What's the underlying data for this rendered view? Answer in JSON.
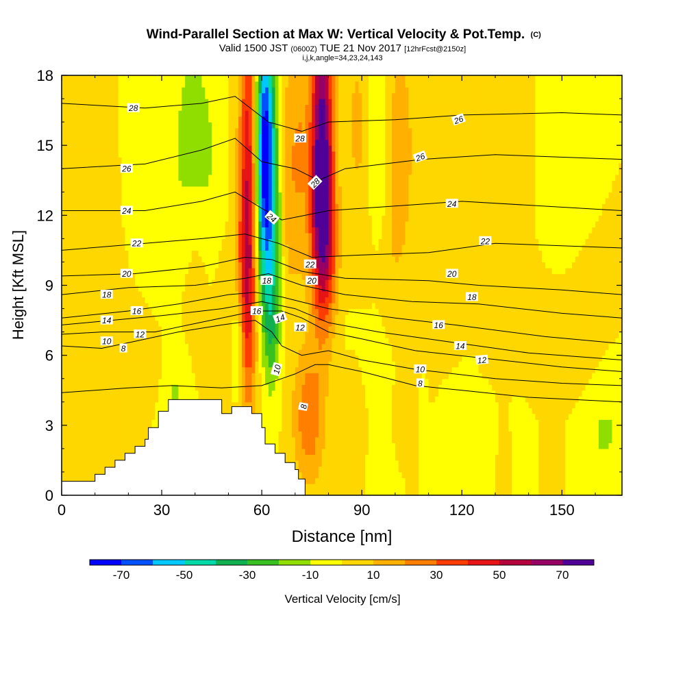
{
  "chart_data": {
    "type": "heatmap",
    "title": "Wind-Parallel Section at Max W: Vertical Velocity & Pot.Temp.",
    "title_mark": "(C)",
    "subtitle_parts": [
      "Valid 1500 JST",
      "(0600Z)",
      "TUE 21 Nov 2017",
      "[12hrFcst@2150z]"
    ],
    "subtitle2": "i,j,k,angle=34,23,24,143",
    "xlabel": "Distance [nm]",
    "ylabel": "Height [Kft MSL]",
    "xlim": [
      0,
      168
    ],
    "ylim": [
      0,
      18
    ],
    "xticks": [
      0,
      30,
      60,
      90,
      120,
      150
    ],
    "yticks": [
      0,
      3,
      6,
      9,
      12,
      15,
      18
    ],
    "colorbar": {
      "label": "Vertical Velocity [cm/s]",
      "levels": [
        -80,
        -70,
        -60,
        -50,
        -40,
        -30,
        -20,
        -10,
        0,
        10,
        20,
        30,
        40,
        50,
        60,
        70,
        80
      ],
      "tick_labels": [
        "-70",
        "-50",
        "-30",
        "-10",
        "10",
        "30",
        "50",
        "70"
      ],
      "tick_values": [
        -70,
        -50,
        -30,
        -10,
        10,
        30,
        50,
        70
      ],
      "colors": [
        "#0000ff",
        "#0050ff",
        "#00c8ff",
        "#00d8a8",
        "#10b050",
        "#38bf20",
        "#90dd00",
        "#ffff00",
        "#ffd700",
        "#ffb000",
        "#ff7f00",
        "#ff3c00",
        "#e61414",
        "#b4003c",
        "#960064",
        "#500096"
      ]
    },
    "base_velocity": 0,
    "velocity_features": [
      {
        "x": 3,
        "y": 10,
        "sx": 4,
        "sy": 7,
        "w": 6
      },
      {
        "x": 14,
        "y": 13,
        "sx": 3,
        "sy": 4,
        "w": 5
      },
      {
        "x": 14,
        "y": 8,
        "sx": 6,
        "sy": 1.5,
        "w": 4
      },
      {
        "x": 8,
        "y": 2.5,
        "sx": 6,
        "sy": 2,
        "w": 7
      },
      {
        "x": 20,
        "y": 5.2,
        "sx": 8,
        "sy": 1.0,
        "w": 7
      },
      {
        "x": 24,
        "y": 15,
        "sx": 4,
        "sy": 3,
        "w": -9
      },
      {
        "x": 39,
        "y": 16,
        "sx": 4,
        "sy": 2.5,
        "w": -14
      },
      {
        "x": 35,
        "y": 12,
        "sx": 4,
        "sy": 2,
        "w": -6
      },
      {
        "x": 41,
        "y": 10,
        "sx": 3,
        "sy": 3,
        "w": 6
      },
      {
        "x": 44,
        "y": 13,
        "sx": 3,
        "sy": 3,
        "w": -8
      },
      {
        "x": 34,
        "y": 4.5,
        "sx": 3,
        "sy": 1.2,
        "w": -12
      },
      {
        "x": 48,
        "y": 7,
        "sx": 1.8,
        "sy": 2.5,
        "w": 6
      },
      {
        "x": 53,
        "y": 6.5,
        "sx": 1.2,
        "sy": 1.8,
        "w": -20
      },
      {
        "x": 56,
        "y": 13,
        "sx": 2.0,
        "sy": 6,
        "w": 50
      },
      {
        "x": 55,
        "y": 8.5,
        "sx": 2.2,
        "sy": 3,
        "w": 18
      },
      {
        "x": 61,
        "y": 15.5,
        "sx": 2.0,
        "sy": 3.5,
        "w": -70
      },
      {
        "x": 62,
        "y": 11,
        "sx": 2.6,
        "sy": 3,
        "w": -35
      },
      {
        "x": 63,
        "y": 7,
        "sx": 1.8,
        "sy": 2,
        "w": -18
      },
      {
        "x": 67.5,
        "y": 13,
        "sx": 1.5,
        "sy": 4,
        "w": 12
      },
      {
        "x": 71,
        "y": 14.5,
        "sx": 2.2,
        "sy": 4,
        "w": 20
      },
      {
        "x": 74,
        "y": 3.3,
        "sx": 3.2,
        "sy": 2.0,
        "w": 28
      },
      {
        "x": 78,
        "y": 15,
        "sx": 2.3,
        "sy": 4.5,
        "w": 75
      },
      {
        "x": 78,
        "y": 11.5,
        "sx": 2.3,
        "sy": 2.5,
        "w": 30
      },
      {
        "x": 81,
        "y": 10,
        "sx": 2.0,
        "sy": 2.5,
        "w": 12
      },
      {
        "x": 89,
        "y": 15,
        "sx": 3,
        "sy": 4,
        "w": 15
      },
      {
        "x": 88,
        "y": 12,
        "sx": 2,
        "sy": 3,
        "w": -4
      },
      {
        "x": 95,
        "y": 14,
        "sx": 3,
        "sy": 4,
        "w": -15
      },
      {
        "x": 91,
        "y": 6.5,
        "sx": 6,
        "sy": 1.2,
        "w": -5
      },
      {
        "x": 97,
        "y": 10,
        "sx": 4,
        "sy": 2.5,
        "w": 10
      },
      {
        "x": 101,
        "y": 15,
        "sx": 3,
        "sy": 3,
        "w": 20
      },
      {
        "x": 111,
        "y": 14,
        "sx": 2.5,
        "sy": 4,
        "w": 6
      },
      {
        "x": 116,
        "y": 10.5,
        "sx": 2.5,
        "sy": 2,
        "w": 8
      },
      {
        "x": 127,
        "y": 16.5,
        "sx": 3,
        "sy": 2,
        "w": 6
      },
      {
        "x": 137,
        "y": 16,
        "sx": 2,
        "sy": 2.5,
        "w": 4
      },
      {
        "x": 150,
        "y": 15.5,
        "sx": 3,
        "sy": 3.5,
        "w": -8
      },
      {
        "x": 136,
        "y": 7.8,
        "sx": 3.5,
        "sy": 1.4,
        "w": 8
      },
      {
        "x": 152,
        "y": 7.2,
        "sx": 5,
        "sy": 1.4,
        "w": 9
      },
      {
        "x": 143,
        "y": 5.5,
        "sx": 8,
        "sy": 0.8,
        "w": 4
      },
      {
        "x": 106,
        "y": 3.0,
        "sx": 0.8,
        "sy": 1.5,
        "w": 8
      },
      {
        "x": 122,
        "y": 2.0,
        "sx": 5,
        "sy": 1.5,
        "w": -6
      },
      {
        "x": 137,
        "y": 2.0,
        "sx": 2,
        "sy": 1.5,
        "w": -5
      },
      {
        "x": 163,
        "y": 2.5,
        "sx": 4,
        "sy": 1.5,
        "w": -12
      },
      {
        "x": 133,
        "y": 1.0,
        "sx": 1.4,
        "sy": 1.5,
        "w": 8
      },
      {
        "x": 147,
        "y": 1.0,
        "sx": 1.4,
        "sy": 1.2,
        "w": 8
      },
      {
        "x": 165,
        "y": 1.0,
        "sx": 2,
        "sy": 0.8,
        "w": 4
      },
      {
        "x": 108,
        "y": 2.2,
        "sx": 1,
        "sy": 1.5,
        "w": -5
      },
      {
        "x": 87,
        "y": 5.0,
        "sx": 2,
        "sy": 1.2,
        "w": 6
      }
    ],
    "terrain": [
      [
        0,
        0.6
      ],
      [
        10,
        0.6
      ],
      [
        10,
        0.9
      ],
      [
        13,
        0.9
      ],
      [
        13,
        1.2
      ],
      [
        16,
        1.2
      ],
      [
        16,
        1.5
      ],
      [
        19,
        1.5
      ],
      [
        19,
        1.8
      ],
      [
        22,
        1.8
      ],
      [
        22,
        2.1
      ],
      [
        25,
        2.1
      ],
      [
        25,
        2.4
      ],
      [
        26,
        2.4
      ],
      [
        26,
        2.9
      ],
      [
        29,
        2.9
      ],
      [
        29,
        3.6
      ],
      [
        32,
        3.6
      ],
      [
        32,
        4.1
      ],
      [
        48,
        4.1
      ],
      [
        48,
        3.5
      ],
      [
        51,
        3.5
      ],
      [
        51,
        3.8
      ],
      [
        57,
        3.8
      ],
      [
        57,
        3.5
      ],
      [
        60,
        3.5
      ],
      [
        60,
        2.9
      ],
      [
        61,
        2.9
      ],
      [
        61,
        2.2
      ],
      [
        64,
        2.2
      ],
      [
        64,
        1.8
      ],
      [
        67,
        1.8
      ],
      [
        67,
        1.4
      ],
      [
        70,
        1.4
      ],
      [
        70,
        1.1
      ],
      [
        71,
        1.1
      ],
      [
        71,
        0.7
      ],
      [
        73,
        0.7
      ],
      [
        73,
        0
      ]
    ],
    "theta_contours": [
      {
        "value": 8,
        "heights": [
          [
            0,
            4.4
          ],
          [
            20,
            4.6
          ],
          [
            33,
            4.7
          ],
          [
            48,
            4.6
          ],
          [
            60,
            4.7
          ],
          [
            66,
            5.0
          ],
          [
            70,
            5.2
          ],
          [
            73,
            5.4
          ],
          [
            76,
            5.6
          ],
          [
            80,
            5.6
          ],
          [
            90,
            5.3
          ],
          [
            106,
            4.7
          ],
          [
            120,
            4.5
          ],
          [
            140,
            4.2
          ],
          [
            168,
            4.0
          ]
        ]
      },
      {
        "value": 10,
        "heights": [
          [
            0,
            6.4
          ],
          [
            12,
            6.3
          ],
          [
            22,
            6.6
          ],
          [
            35,
            7.0
          ],
          [
            48,
            7.3
          ],
          [
            58,
            7.5
          ],
          [
            63,
            7.0
          ],
          [
            66,
            6.4
          ],
          [
            72,
            6.0
          ],
          [
            80,
            6.2
          ],
          [
            90,
            5.8
          ],
          [
            106,
            5.4
          ],
          [
            130,
            5.0
          ],
          [
            150,
            4.8
          ],
          [
            168,
            4.7
          ]
        ]
      },
      {
        "value": 12,
        "heights": [
          [
            0,
            6.9
          ],
          [
            12,
            7.0
          ],
          [
            28,
            7.0
          ],
          [
            48,
            7.6
          ],
          [
            58,
            7.9
          ],
          [
            66,
            7.9
          ],
          [
            72,
            7.6
          ],
          [
            80,
            7.0
          ],
          [
            90,
            6.7
          ],
          [
            106,
            6.2
          ],
          [
            125,
            5.9
          ],
          [
            150,
            5.5
          ],
          [
            168,
            5.3
          ]
        ]
      },
      {
        "value": 14,
        "heights": [
          [
            0,
            7.3
          ],
          [
            15,
            7.5
          ],
          [
            30,
            7.7
          ],
          [
            48,
            8.0
          ],
          [
            60,
            8.3
          ],
          [
            70,
            8.0
          ],
          [
            80,
            7.4
          ],
          [
            95,
            7.0
          ],
          [
            115,
            6.6
          ],
          [
            140,
            6.1
          ],
          [
            168,
            5.8
          ]
        ]
      },
      {
        "value": 16,
        "heights": [
          [
            0,
            7.6
          ],
          [
            20,
            7.9
          ],
          [
            35,
            8.2
          ],
          [
            50,
            8.6
          ],
          [
            58,
            8.7
          ],
          [
            66,
            8.5
          ],
          [
            80,
            8.0
          ],
          [
            100,
            7.6
          ],
          [
            118,
            7.3
          ],
          [
            145,
            6.8
          ],
          [
            168,
            6.5
          ]
        ]
      },
      {
        "value": 18,
        "heights": [
          [
            0,
            8.6
          ],
          [
            20,
            8.9
          ],
          [
            40,
            9.0
          ],
          [
            55,
            9.3
          ],
          [
            62,
            9.5
          ],
          [
            72,
            9.0
          ],
          [
            85,
            8.6
          ],
          [
            105,
            8.3
          ],
          [
            125,
            8.2
          ],
          [
            150,
            7.8
          ],
          [
            168,
            7.6
          ]
        ]
      },
      {
        "value": 20,
        "heights": [
          [
            0,
            9.4
          ],
          [
            22,
            9.5
          ],
          [
            42,
            9.8
          ],
          [
            55,
            10.2
          ],
          [
            63,
            10.1
          ],
          [
            72,
            9.6
          ],
          [
            85,
            9.3
          ],
          [
            110,
            9.2
          ],
          [
            125,
            9.0
          ],
          [
            150,
            8.8
          ],
          [
            168,
            8.6
          ]
        ]
      },
      {
        "value": 22,
        "heights": [
          [
            0,
            10.5
          ],
          [
            25,
            10.8
          ],
          [
            42,
            11.0
          ],
          [
            55,
            11.2
          ],
          [
            65,
            10.8
          ],
          [
            75,
            10.2
          ],
          [
            90,
            10.3
          ],
          [
            110,
            10.4
          ],
          [
            130,
            10.8
          ],
          [
            168,
            10.6
          ]
        ]
      },
      {
        "value": 24,
        "heights": [
          [
            0,
            12.2
          ],
          [
            25,
            12.2
          ],
          [
            42,
            12.6
          ],
          [
            52,
            13.0
          ],
          [
            60,
            12.3
          ],
          [
            66,
            11.8
          ],
          [
            80,
            12.2
          ],
          [
            100,
            12.4
          ],
          [
            120,
            12.6
          ],
          [
            168,
            12.2
          ]
        ]
      },
      {
        "value": 26,
        "heights": [
          [
            0,
            14.0
          ],
          [
            25,
            14.2
          ],
          [
            42,
            14.8
          ],
          [
            52,
            15.3
          ],
          [
            60,
            14.3
          ],
          [
            70,
            14.0
          ],
          [
            77,
            13.5
          ],
          [
            85,
            14.0
          ],
          [
            108,
            14.4
          ],
          [
            130,
            14.6
          ],
          [
            168,
            14.4
          ]
        ]
      },
      {
        "value": 28,
        "heights": [
          [
            0,
            16.8
          ],
          [
            25,
            16.6
          ],
          [
            42,
            16.8
          ],
          [
            52,
            17.1
          ],
          [
            62,
            16.0
          ],
          [
            72,
            15.6
          ],
          [
            80,
            16.0
          ],
          [
            100,
            16.1
          ],
          [
            120,
            16.3
          ],
          [
            150,
            16.4
          ],
          [
            168,
            16.3
          ]
        ]
      }
    ],
    "contour_labels": [
      {
        "text": "28",
        "x": 21.5,
        "y": 16.6,
        "rot": 0
      },
      {
        "text": "26",
        "x": 19.5,
        "y": 14.0,
        "rot": 0
      },
      {
        "text": "24",
        "x": 19.5,
        "y": 12.2,
        "rot": 0
      },
      {
        "text": "22",
        "x": 22.5,
        "y": 10.8,
        "rot": 0
      },
      {
        "text": "20",
        "x": 19.5,
        "y": 9.5,
        "rot": 0
      },
      {
        "text": "18",
        "x": 13.5,
        "y": 8.6,
        "rot": 0
      },
      {
        "text": "16",
        "x": 22.5,
        "y": 7.9,
        "rot": 0
      },
      {
        "text": "14",
        "x": 13.5,
        "y": 7.5,
        "rot": 0
      },
      {
        "text": "12",
        "x": 23.5,
        "y": 6.9,
        "rot": 0
      },
      {
        "text": "10",
        "x": 13.5,
        "y": 6.6,
        "rot": 0
      },
      {
        "text": "8",
        "x": 18.5,
        "y": 6.3,
        "rot": 0
      },
      {
        "text": "28",
        "x": 71.5,
        "y": 15.3,
        "rot": 0
      },
      {
        "text": "28",
        "x": 76.0,
        "y": 13.4,
        "rot": -45
      },
      {
        "text": "24",
        "x": 63.0,
        "y": 11.9,
        "rot": 40
      },
      {
        "text": "22",
        "x": 74.5,
        "y": 9.9,
        "rot": 0
      },
      {
        "text": "20",
        "x": 75.0,
        "y": 9.2,
        "rot": 0
      },
      {
        "text": "18",
        "x": 61.5,
        "y": 9.2,
        "rot": 0
      },
      {
        "text": "16",
        "x": 58.5,
        "y": 7.9,
        "rot": 0
      },
      {
        "text": "14",
        "x": 65.5,
        "y": 7.6,
        "rot": -20
      },
      {
        "text": "12",
        "x": 71.5,
        "y": 7.2,
        "rot": 0
      },
      {
        "text": "10",
        "x": 64.5,
        "y": 5.4,
        "rot": -75
      },
      {
        "text": "8",
        "x": 72.5,
        "y": 3.8,
        "rot": -80
      },
      {
        "text": "26",
        "x": 119.0,
        "y": 16.1,
        "rot": -20
      },
      {
        "text": "26",
        "x": 107.5,
        "y": 14.5,
        "rot": -20
      },
      {
        "text": "24",
        "x": 117.0,
        "y": 12.5,
        "rot": 0
      },
      {
        "text": "22",
        "x": 127.0,
        "y": 10.9,
        "rot": 0
      },
      {
        "text": "20",
        "x": 117.0,
        "y": 9.5,
        "rot": 0
      },
      {
        "text": "18",
        "x": 123.0,
        "y": 8.5,
        "rot": 0
      },
      {
        "text": "16",
        "x": 113.0,
        "y": 7.3,
        "rot": 0
      },
      {
        "text": "14",
        "x": 119.5,
        "y": 6.4,
        "rot": 0
      },
      {
        "text": "12",
        "x": 126.0,
        "y": 5.8,
        "rot": -5
      },
      {
        "text": "10",
        "x": 107.5,
        "y": 5.4,
        "rot": 0
      },
      {
        "text": "8",
        "x": 107.5,
        "y": 4.8,
        "rot": 0
      }
    ]
  }
}
